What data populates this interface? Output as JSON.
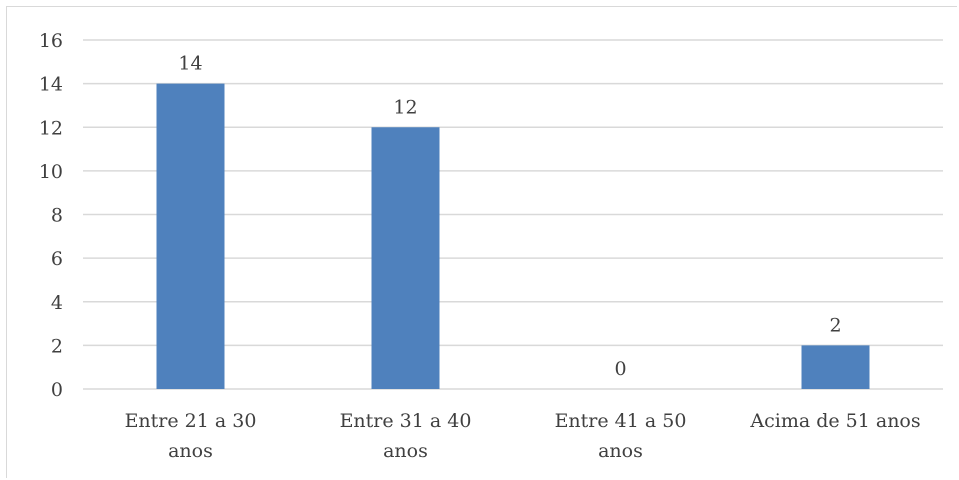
{
  "chart_data": {
    "type": "bar",
    "title": "",
    "xlabel": "",
    "ylabel": "",
    "categories": [
      [
        "Entre 21 a 30",
        "anos"
      ],
      [
        "Entre 31 a 40",
        "anos"
      ],
      [
        "Entre 41 a 50",
        "anos"
      ],
      [
        "Acima de 51 anos"
      ]
    ],
    "values": [
      14,
      12,
      0,
      2
    ],
    "data_labels": [
      "14",
      "12",
      "0",
      "2"
    ],
    "ylim": [
      0,
      16
    ],
    "yticks": [
      "0",
      "2",
      "4",
      "6",
      "8",
      "10",
      "12",
      "14",
      "16"
    ],
    "grid": true,
    "legend": "none",
    "bar_color": "#4f81bd",
    "grid_color": "#d9d9d9",
    "text_color": "#404040"
  }
}
